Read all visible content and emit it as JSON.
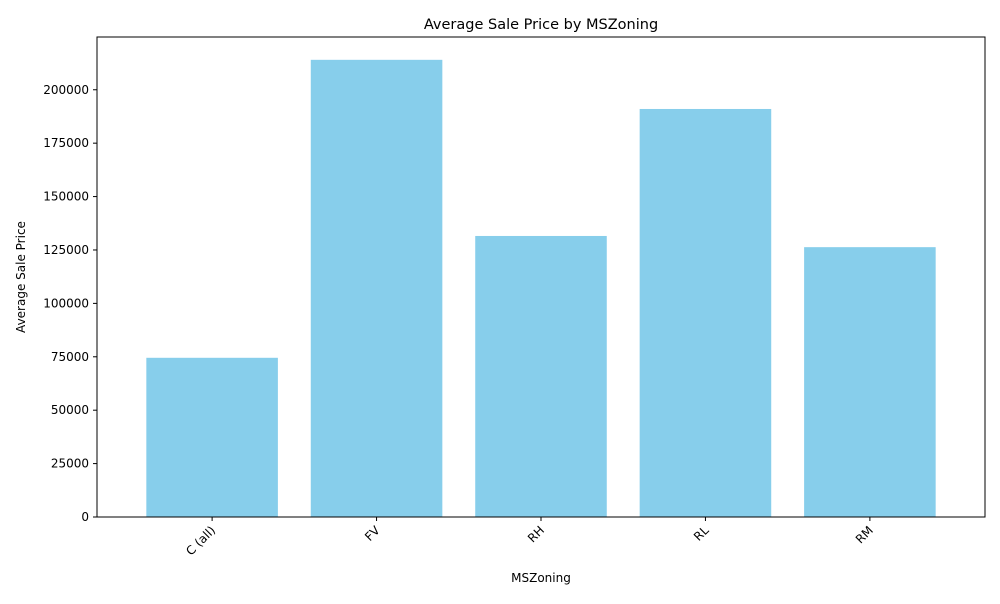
{
  "chart_data": {
    "type": "bar",
    "title": "Average Sale Price by MSZoning",
    "xlabel": "MSZoning",
    "ylabel": "Average Sale Price",
    "categories": [
      "C (all)",
      "FV",
      "RH",
      "RL",
      "RM"
    ],
    "values": [
      74528,
      214014,
      131558,
      191005,
      126317
    ],
    "ylim": [
      0,
      224700
    ],
    "yticks": [
      0,
      25000,
      50000,
      75000,
      100000,
      125000,
      150000,
      175000,
      200000
    ],
    "bar_color": "#87ceeb",
    "grid": false,
    "legend": "none",
    "xtick_rotation": 45
  }
}
